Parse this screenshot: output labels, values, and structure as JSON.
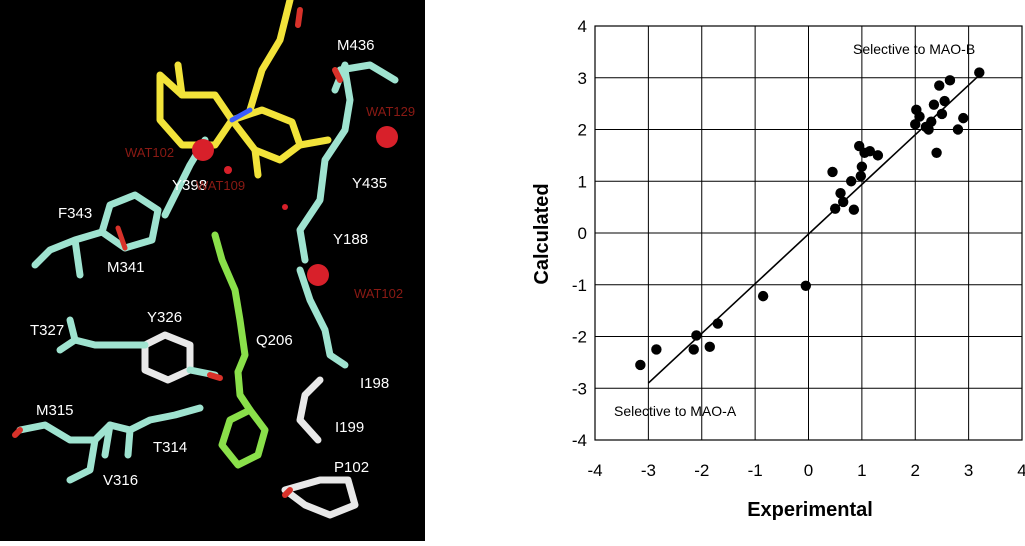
{
  "structure_panel": {
    "background": "#000000",
    "residues": [
      "M436",
      "Y398",
      "F343",
      "M341",
      "Y435",
      "Y188",
      "T327",
      "Y326",
      "Q206",
      "I198",
      "M315",
      "T314",
      "V316",
      "I199",
      "P102"
    ],
    "waters": [
      "WAT102",
      "WAT109",
      "WAT129",
      "WAT102"
    ],
    "colors": {
      "flavin": "#f2e33a",
      "inhibitor": "#8ae04a",
      "residue": "#9fe3d0",
      "residue_alt": "#e8e8e8",
      "oxygen": "#d8322a",
      "nitrogen": "#3a5cff",
      "water": "#d8202a"
    }
  },
  "chart_data": {
    "type": "scatter",
    "xlabel": "Experimental",
    "ylabel": "Calculated",
    "xlim": [
      -4,
      4
    ],
    "ylim": [
      -4,
      4
    ],
    "xticks": [
      "-4",
      "-3",
      "-2",
      "-1",
      "0",
      "1",
      "2",
      "3",
      "4"
    ],
    "yticks": [
      "4",
      "3",
      "2",
      "1",
      "0",
      "-1",
      "-2",
      "-3",
      "-4"
    ],
    "grid": true,
    "annotations": [
      "Selective to MAO-B",
      "Selective to MAO-A"
    ],
    "points": [
      [
        -3.15,
        -2.55
      ],
      [
        -2.85,
        -2.25
      ],
      [
        -2.15,
        -2.25
      ],
      [
        -2.1,
        -1.98
      ],
      [
        -1.85,
        -2.2
      ],
      [
        -1.7,
        -1.75
      ],
      [
        -0.85,
        -1.22
      ],
      [
        -0.05,
        -1.02
      ],
      [
        0.45,
        1.18
      ],
      [
        0.5,
        0.47
      ],
      [
        0.6,
        0.77
      ],
      [
        0.65,
        0.6
      ],
      [
        0.8,
        1.0
      ],
      [
        0.85,
        0.45
      ],
      [
        0.95,
        1.68
      ],
      [
        0.98,
        1.1
      ],
      [
        1.0,
        1.28
      ],
      [
        1.05,
        1.55
      ],
      [
        1.15,
        1.58
      ],
      [
        1.3,
        1.5
      ],
      [
        2.0,
        2.1
      ],
      [
        2.02,
        2.38
      ],
      [
        2.08,
        2.25
      ],
      [
        2.2,
        2.05
      ],
      [
        2.25,
        2.0
      ],
      [
        2.3,
        2.15
      ],
      [
        2.35,
        2.48
      ],
      [
        2.4,
        1.55
      ],
      [
        2.45,
        2.85
      ],
      [
        2.5,
        2.3
      ],
      [
        2.55,
        2.55
      ],
      [
        2.65,
        2.95
      ],
      [
        2.8,
        2.0
      ],
      [
        2.9,
        2.22
      ],
      [
        3.2,
        3.1
      ]
    ],
    "fit_line": {
      "x": [
        -3.0,
        3.2
      ],
      "y": [
        -2.9,
        3.05
      ]
    },
    "colors": {
      "points": "#000000",
      "line": "#000000",
      "grid": "#000000"
    }
  }
}
